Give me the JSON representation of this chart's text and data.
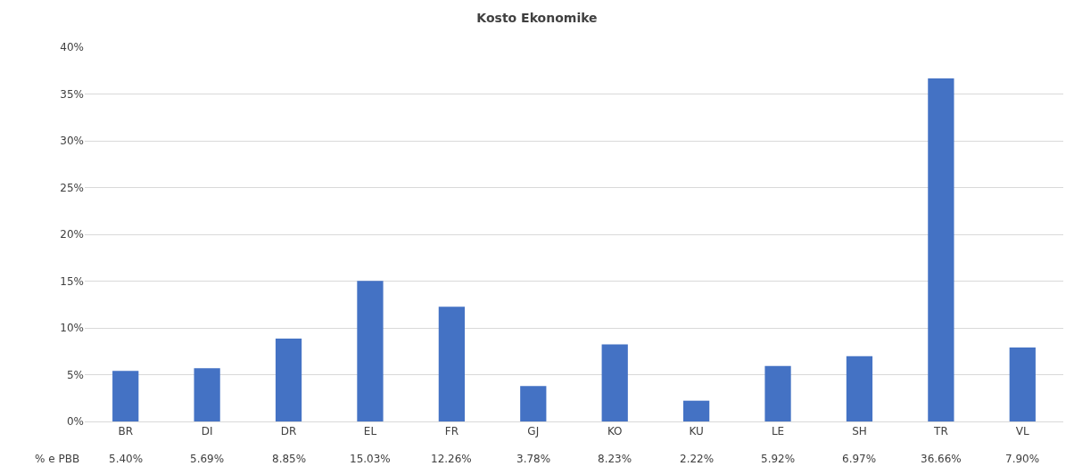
{
  "chart_data": {
    "type": "bar",
    "title": "Kosto Ekonomike",
    "categories": [
      "BR",
      "DI",
      "DR",
      "EL",
      "FR",
      "GJ",
      "KO",
      "KU",
      "LE",
      "SH",
      "TR",
      "VL"
    ],
    "series": [
      {
        "name": "% e PBB",
        "color": "#4472c4",
        "values": [
          5.4,
          5.69,
          8.85,
          15.03,
          12.26,
          3.78,
          8.23,
          2.22,
          5.92,
          6.97,
          36.66,
          7.9
        ],
        "value_labels": [
          "5.40%",
          "5.69%",
          "8.85%",
          "15.03%",
          "12.26%",
          "3.78%",
          "8.23%",
          "2.22%",
          "5.92%",
          "6.97%",
          "36.66%",
          "7.90%"
        ]
      }
    ],
    "ylim": [
      0,
      40
    ],
    "yticks": [
      {
        "value": 0,
        "label": "0%"
      },
      {
        "value": 5,
        "label": "5%"
      },
      {
        "value": 10,
        "label": "10%"
      },
      {
        "value": 15,
        "label": "15%"
      },
      {
        "value": 20,
        "label": "20%"
      },
      {
        "value": 25,
        "label": "25%"
      },
      {
        "value": 30,
        "label": "30%"
      },
      {
        "value": 35,
        "label": "35%"
      },
      {
        "value": 40,
        "label": "40%"
      }
    ],
    "grid": "y",
    "legend": false
  }
}
